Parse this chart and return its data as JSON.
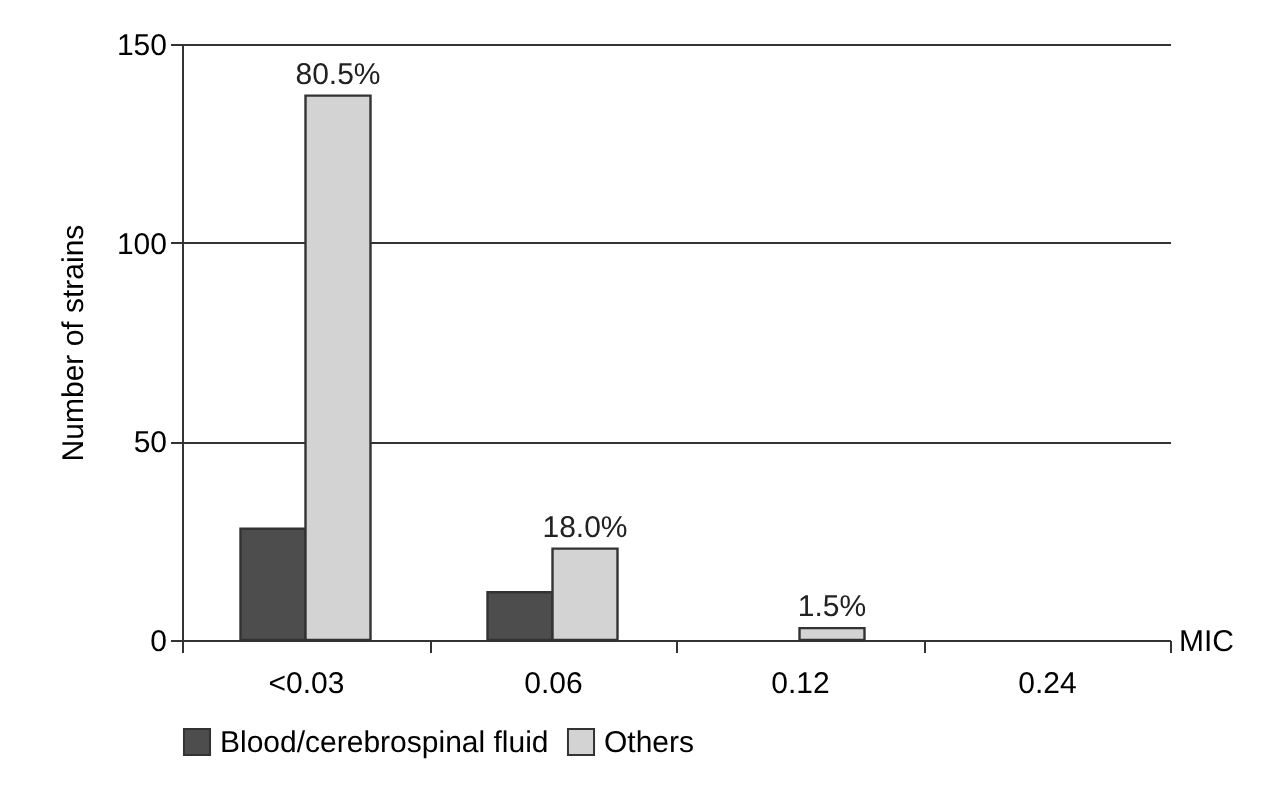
{
  "chart_data": {
    "type": "bar",
    "xlabel": "MIC",
    "ylabel": "Number of strains",
    "categories": [
      "<0.03",
      "0.06",
      "0.12",
      "0.24"
    ],
    "series": [
      {
        "name": "Blood/cerebrospinal fluid",
        "color": "#4d4d4d",
        "values": [
          28,
          12,
          0,
          0
        ]
      },
      {
        "name": "Others",
        "color": "#d3d3d3",
        "values": [
          137,
          23,
          3,
          0
        ]
      }
    ],
    "annotations": [
      {
        "text": "80.5%",
        "x": "<0.03",
        "y": 137
      },
      {
        "text": "18.0%",
        "x": "0.06",
        "y": 23
      },
      {
        "text": "1.5%",
        "x": "0.12",
        "y": 3
      }
    ],
    "ylim": [
      0,
      150
    ],
    "yticks": [
      0,
      50,
      100,
      150
    ],
    "grid": "y",
    "legend": "bottom"
  }
}
